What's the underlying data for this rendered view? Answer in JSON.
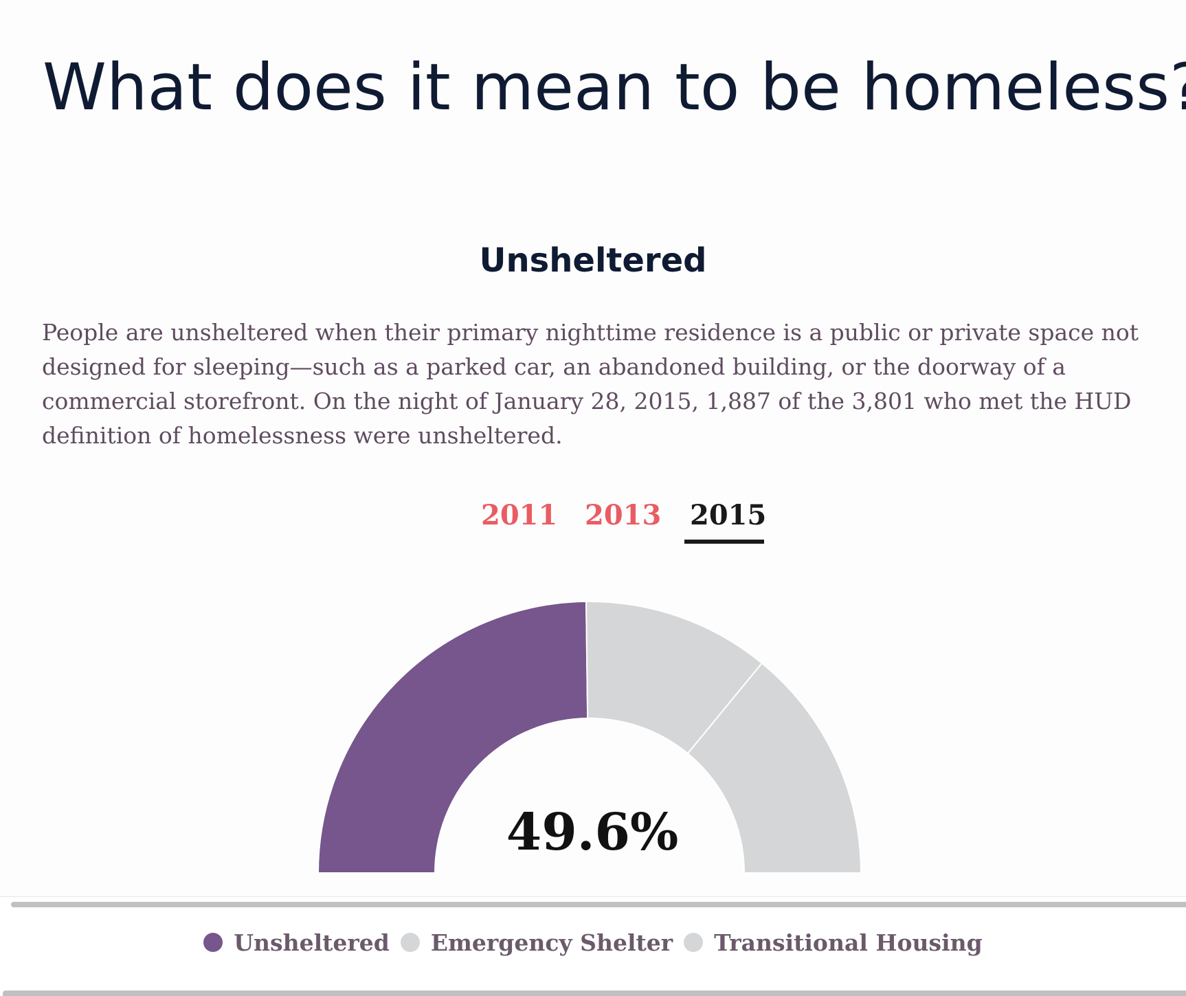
{
  "page": {
    "title": "What does it mean to be homeless?"
  },
  "section": {
    "heading": "Unsheltered",
    "description": "People are unsheltered when their primary nighttime residence is a public or private space not designed for sleeping—such as a parked car, an abandoned building, or the doorway of a commercial storefront. On the night of January 28, 2015, 1,887 of the 3,801 who met the HUD definition of homelessness were unsheltered."
  },
  "year_tabs": [
    {
      "label": "2011",
      "active": false
    },
    {
      "label": "2013",
      "active": false
    },
    {
      "label": "2015",
      "active": true
    }
  ],
  "colors": {
    "highlight": "#76568c",
    "inactive": "#d5d6d7",
    "tab": "#e85d63",
    "tab_active": "#1a1a1a"
  },
  "chart_data": {
    "type": "pie",
    "variant": "semi-donut",
    "year": "2015",
    "center_label": "49.6%",
    "series": [
      {
        "name": "Unsheltered",
        "value": 49.6,
        "color": "#76568c"
      },
      {
        "name": "Emergency Shelter",
        "value": 22.3,
        "color": "#d5d6d7"
      },
      {
        "name": "Transitional Housing",
        "value": 28.1,
        "color": "#d5d6d7"
      }
    ],
    "legend_position": "bottom"
  }
}
